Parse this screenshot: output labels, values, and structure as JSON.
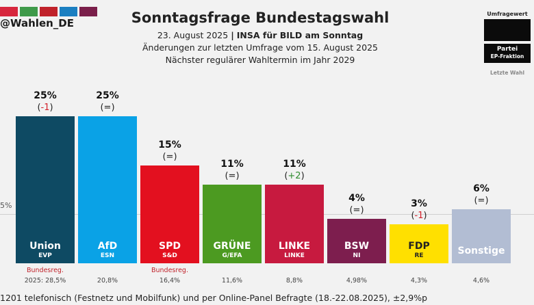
{
  "account": "@Wahlen_DE",
  "header": {
    "title": "Sonntagsfrage Bundestagswahl",
    "date": "23. August 2025",
    "separator": "|",
    "institute": "INSA für BILD am Sonntag",
    "changes_note": "Änderungen zur letzten Umfrage vom 15. August 2025",
    "next_election": "Nächster regulärer Wahltermin im Jahr 2029"
  },
  "legend": {
    "poll_value": "Umfragewert",
    "party": "Partei",
    "ep_group": "EP-Fraktion",
    "last_election": "Letzte Wahl"
  },
  "strip_colors": [
    "#d7263d",
    "#3f9a4a",
    "#c0222a",
    "#1b7fc1",
    "#7a1f4a"
  ],
  "axis": {
    "reference_label": "5%",
    "reference_value": 5
  },
  "chart_data": {
    "type": "bar",
    "title": "Sonntagsfrage Bundestagswahl",
    "ylim": [
      0,
      25
    ],
    "categories": [
      "Union",
      "AfD",
      "SPD",
      "GRÜNE",
      "LINKE",
      "BSW",
      "FDP",
      "Sonstige"
    ],
    "values": [
      25,
      25,
      15,
      11,
      11,
      4,
      3,
      6
    ],
    "parties": [
      {
        "name": "Union",
        "group": "EVP",
        "pct_label": "25%",
        "change": "-1",
        "change_dir": "down",
        "color": "#0e4a63",
        "text_color": "#ffffff",
        "gov_note": "Bundesreg.",
        "last_election": "2025: 28,5%"
      },
      {
        "name": "AfD",
        "group": "ESN",
        "pct_label": "25%",
        "change": "=",
        "change_dir": "same",
        "color": "#0aa2e6",
        "text_color": "#ffffff",
        "gov_note": "",
        "last_election": "20,8%"
      },
      {
        "name": "SPD",
        "group": "S&D",
        "pct_label": "15%",
        "change": "=",
        "change_dir": "same",
        "color": "#e3101f",
        "text_color": "#ffffff",
        "gov_note": "Bundesreg.",
        "last_election": "16,4%"
      },
      {
        "name": "GRÜNE",
        "group": "G/EFA",
        "pct_label": "11%",
        "change": "=",
        "change_dir": "same",
        "color": "#4c9a21",
        "text_color": "#ffffff",
        "gov_note": "",
        "last_election": "11,6%"
      },
      {
        "name": "LINKE",
        "group": "LINKE",
        "pct_label": "11%",
        "change": "+2",
        "change_dir": "up",
        "color": "#c71a3f",
        "text_color": "#ffffff",
        "gov_note": "",
        "last_election": "8,8%"
      },
      {
        "name": "BSW",
        "group": "NI",
        "pct_label": "4%",
        "change": "=",
        "change_dir": "same",
        "color": "#7d1e4e",
        "text_color": "#ffffff",
        "gov_note": "",
        "last_election": "4,98%"
      },
      {
        "name": "FDP",
        "group": "RE",
        "pct_label": "3%",
        "change": "-1",
        "change_dir": "down",
        "color": "#ffe000",
        "text_color": "#222222",
        "gov_note": "",
        "last_election": "4,3%"
      },
      {
        "name": "Sonstige",
        "group": "",
        "pct_label": "6%",
        "change": "=",
        "change_dir": "same",
        "color": "#b2bdd3",
        "text_color": "#ffffff",
        "gov_note": "",
        "last_election": "4,6%"
      }
    ]
  },
  "footer": "1201 telefonisch (Festnetz und Mobilfunk) und per Online-Panel Befragte (18.-22.08.2025), ±2,9%p"
}
